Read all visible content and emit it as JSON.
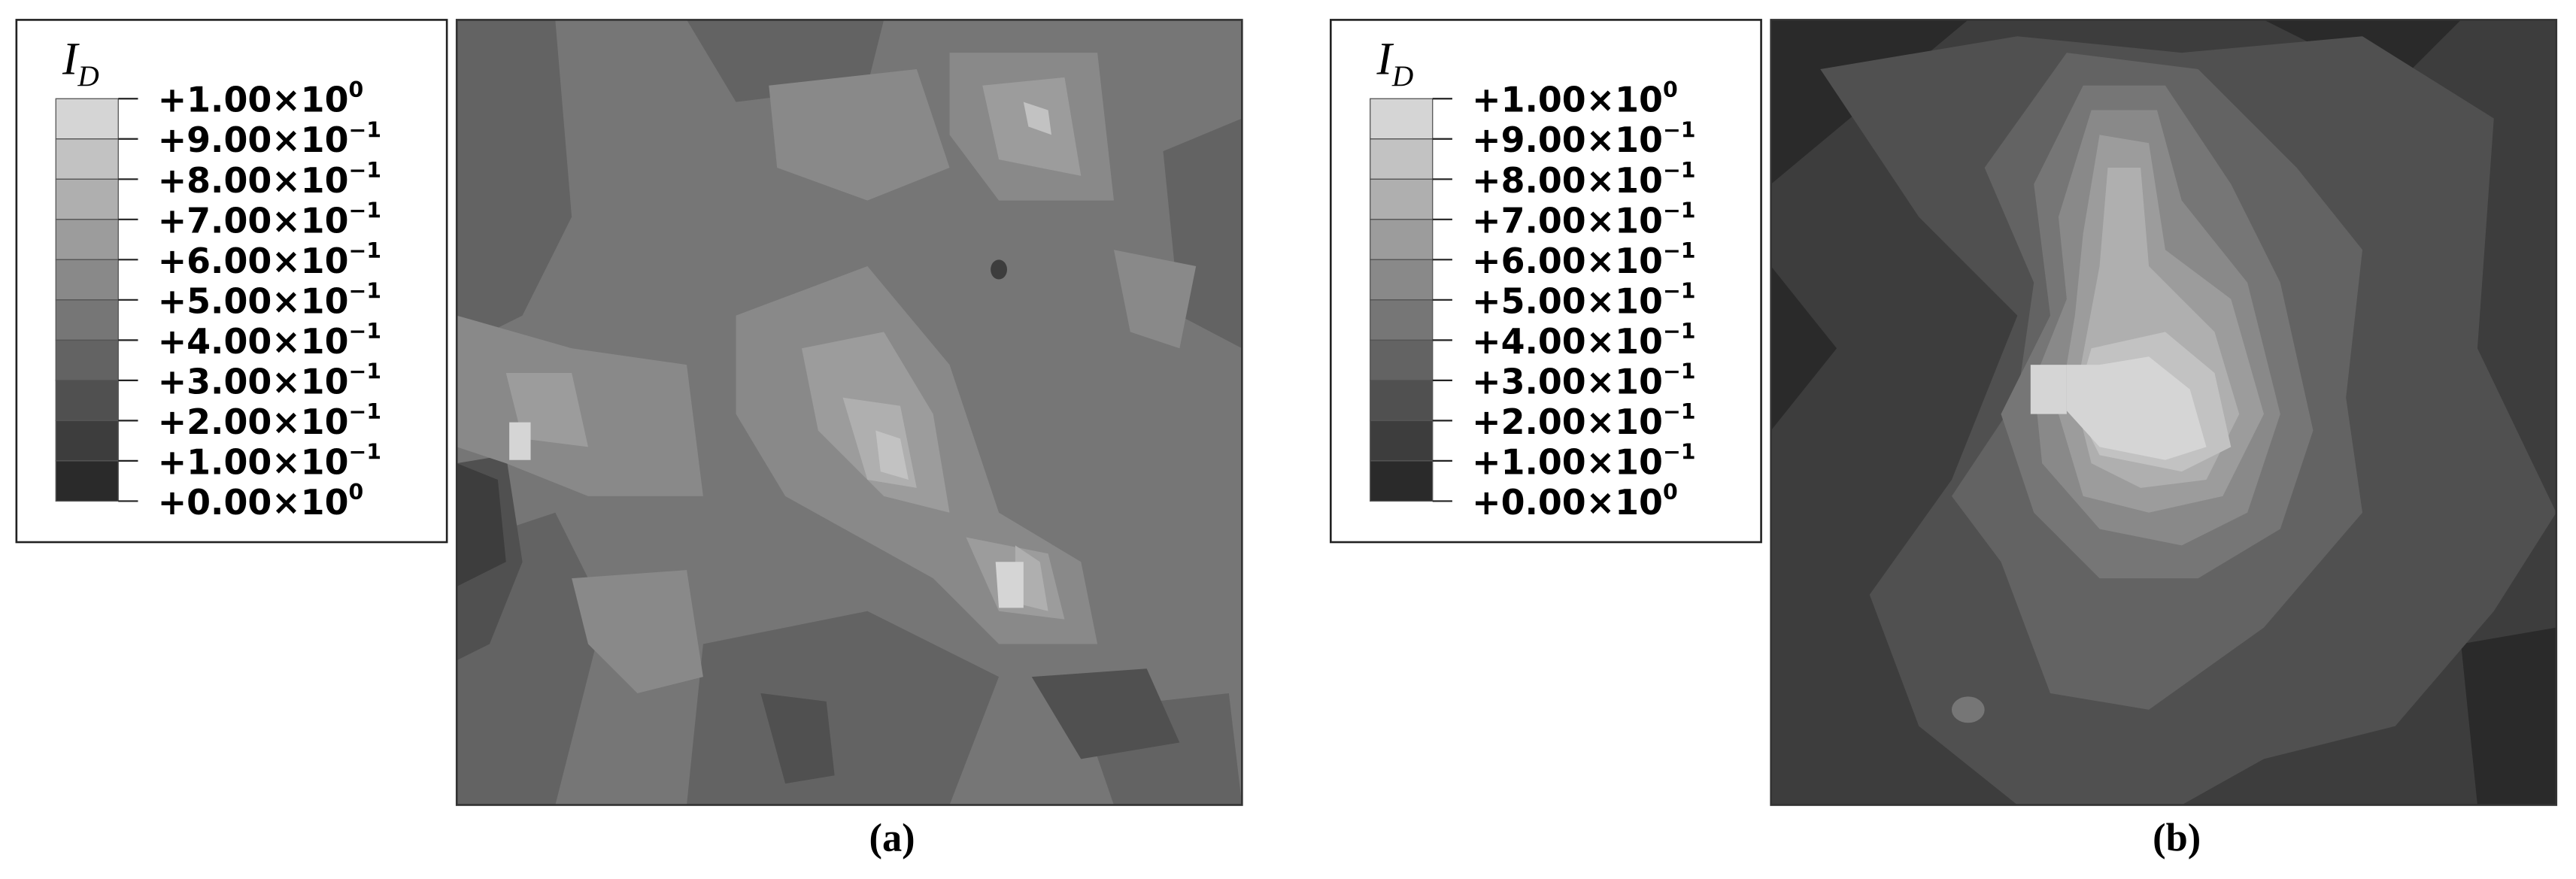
{
  "figure": {
    "panels": [
      {
        "label": "(a)",
        "legend": {
          "title": "I",
          "title_subscript": "D",
          "levels": [
            {
              "mantissa": "+1.00×10",
              "exponent": "0"
            },
            {
              "mantissa": "+9.00×10",
              "exponent": "−1"
            },
            {
              "mantissa": "+8.00×10",
              "exponent": "−1"
            },
            {
              "mantissa": "+7.00×10",
              "exponent": "−1"
            },
            {
              "mantissa": "+6.00×10",
              "exponent": "−1"
            },
            {
              "mantissa": "+5.00×10",
              "exponent": "−1"
            },
            {
              "mantissa": "+4.00×10",
              "exponent": "−1"
            },
            {
              "mantissa": "+3.00×10",
              "exponent": "−1"
            },
            {
              "mantissa": "+2.00×10",
              "exponent": "−1"
            },
            {
              "mantissa": "+1.00×10",
              "exponent": "−1"
            },
            {
              "mantissa": "+0.00×10",
              "exponent": "0"
            }
          ]
        }
      },
      {
        "label": "(b)",
        "legend": {
          "title": "I",
          "title_subscript": "D",
          "levels": [
            {
              "mantissa": "+1.00×10",
              "exponent": "0"
            },
            {
              "mantissa": "+9.00×10",
              "exponent": "−1"
            },
            {
              "mantissa": "+8.00×10",
              "exponent": "−1"
            },
            {
              "mantissa": "+7.00×10",
              "exponent": "−1"
            },
            {
              "mantissa": "+6.00×10",
              "exponent": "−1"
            },
            {
              "mantissa": "+5.00×10",
              "exponent": "−1"
            },
            {
              "mantissa": "+4.00×10",
              "exponent": "−1"
            },
            {
              "mantissa": "+3.00×10",
              "exponent": "−1"
            },
            {
              "mantissa": "+2.00×10",
              "exponent": "−1"
            },
            {
              "mantissa": "+1.00×10",
              "exponent": "−1"
            },
            {
              "mantissa": "+0.00×10",
              "exponent": "0"
            }
          ]
        }
      }
    ]
  }
}
